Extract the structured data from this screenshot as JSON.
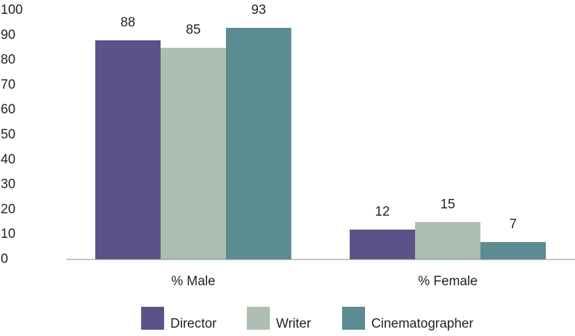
{
  "chart_data": {
    "type": "bar",
    "categories": [
      "% Male",
      "% Female"
    ],
    "series": [
      {
        "name": "Director",
        "color": "#5b5289",
        "values": [
          88,
          12
        ]
      },
      {
        "name": "Writer",
        "color": "#aebdb1",
        "values": [
          85,
          15
        ]
      },
      {
        "name": "Cinematographer",
        "color": "#5b8c91",
        "values": [
          93,
          7
        ]
      }
    ],
    "ylim": [
      0,
      100
    ],
    "yticks": [
      0,
      10,
      20,
      30,
      40,
      50,
      60,
      70,
      80,
      90,
      100
    ],
    "grid": false,
    "legend": "bottom"
  }
}
